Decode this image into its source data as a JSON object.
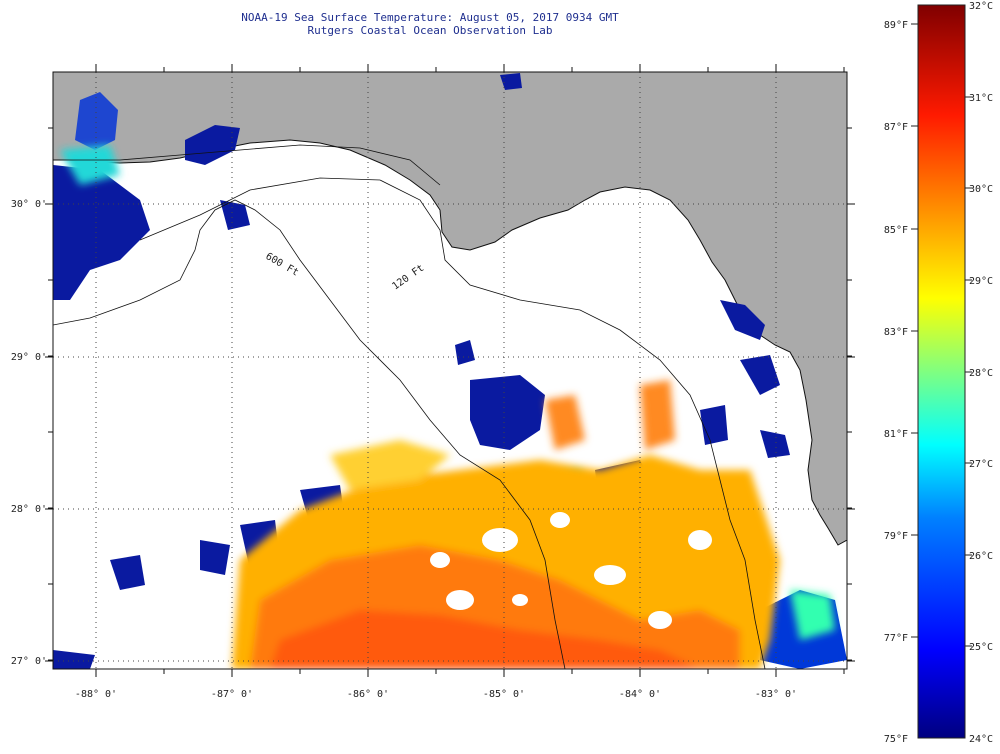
{
  "header": {
    "title": "NOAA-19 Sea Surface Temperature:  August 05, 2017 0934 GMT",
    "subtitle": "Rutgers Coastal Ocean Observation Lab"
  },
  "map": {
    "lon_labels": [
      "-88° 0'",
      "-87° 0'",
      "-86° 0'",
      "-85° 0'",
      "-84° 0'",
      "-83° 0'"
    ],
    "lat_labels": [
      "30° 0'",
      "29° 0'",
      "28° 0'",
      "27° 0'"
    ],
    "lon_values": [
      -88,
      -87,
      -86,
      -85,
      -84,
      -83
    ],
    "lat_values": [
      30,
      29,
      28,
      27
    ],
    "lon_range": [
      -88.33,
      -82.5
    ],
    "lat_range": [
      26.95,
      30.85
    ],
    "isobath_labels": [
      "600 Ft",
      "120 Ft"
    ],
    "colors": {
      "land": "#aaaaaa",
      "no_data": "#ffffff",
      "grid": "#444444",
      "coast": "#111111"
    }
  },
  "colorbar": {
    "celsius_labels": [
      "32°C",
      "31°C",
      "30°C",
      "29°C",
      "28°C",
      "27°C",
      "26°C",
      "25°C",
      "24°C"
    ],
    "fahrenheit_labels": [
      "89°F",
      "87°F",
      "85°F",
      "83°F",
      "81°F",
      "79°F",
      "77°F",
      "75°F"
    ],
    "range_c": [
      24,
      32
    ],
    "colormap": [
      "#000080",
      "#0000ff",
      "#0080ff",
      "#00ffff",
      "#80ff80",
      "#ffff00",
      "#ff8000",
      "#ff0000",
      "#800000"
    ]
  }
}
